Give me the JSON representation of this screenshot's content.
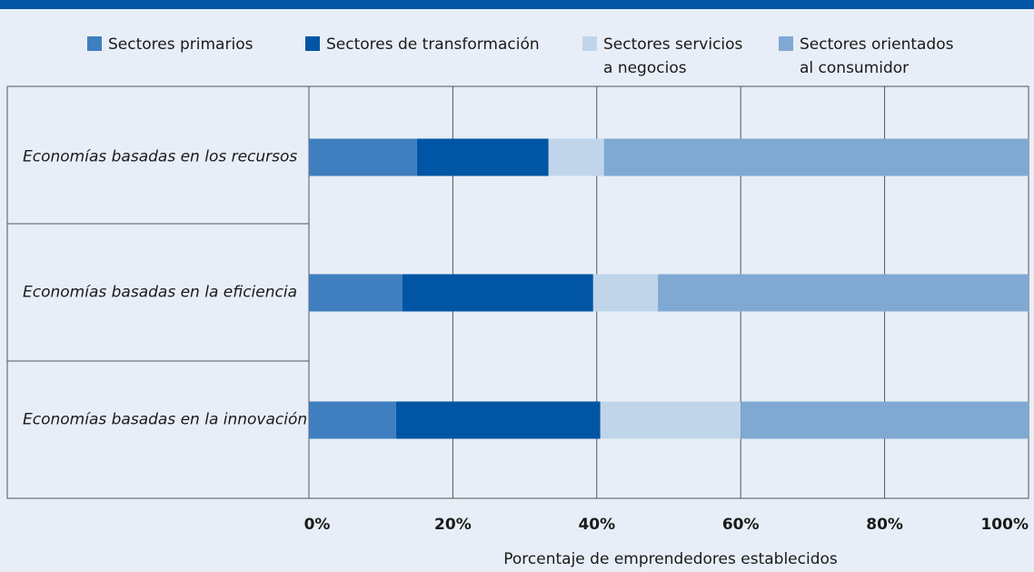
{
  "chart_data": {
    "type": "stacked_barh",
    "categories": [
      "Economías basadas en los recursos",
      "Economías basadas en la eficiencia",
      "Economías basadas en la innovación"
    ],
    "series": [
      {
        "name": "Sectores primarios",
        "color": "#3f7fbf",
        "values": [
          15,
          13,
          12.1
        ]
      },
      {
        "name": "Sectores de transformación",
        "color": "#0055a4",
        "values": [
          18.3,
          26.5,
          28.4
        ]
      },
      {
        "name": "Sectores servicios a negocios",
        "color": "#c0d5ea",
        "values": [
          7.7,
          9,
          19.5
        ]
      },
      {
        "name": "Sectores orientados al consumidor",
        "color": "#7fa9d3",
        "values": [
          59,
          51.5,
          40
        ]
      }
    ],
    "xlim": [
      0,
      100
    ],
    "xticks": [
      {
        "value": 0,
        "label": "0%"
      },
      {
        "value": 20,
        "label": "20%"
      },
      {
        "value": 40,
        "label": "40%"
      },
      {
        "value": 60,
        "label": "60%"
      },
      {
        "value": 80,
        "label": "80%"
      },
      {
        "value": 100,
        "label": "100%"
      }
    ],
    "xlabel": "Porcentaje de emprendedores establecidos",
    "grid": true
  }
}
